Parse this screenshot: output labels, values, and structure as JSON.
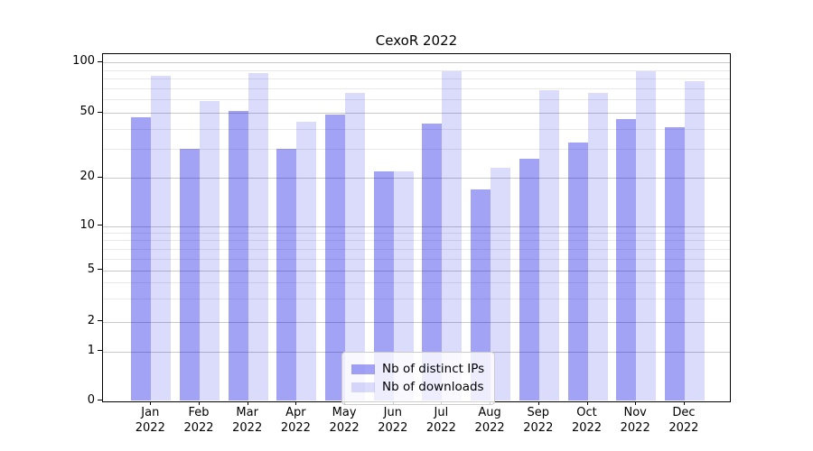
{
  "chart_data": {
    "type": "bar",
    "title": "CexoR 2022",
    "categories": [
      "Jan",
      "Feb",
      "Mar",
      "Apr",
      "May",
      "Jun",
      "Jul",
      "Aug",
      "Sep",
      "Oct",
      "Nov",
      "Dec"
    ],
    "category_year": "2022",
    "series": [
      {
        "name": "Nb of distinct IPs",
        "color": "rgba(0,0,230,0.36)",
        "values": [
          47,
          30,
          51,
          30,
          49,
          22,
          43,
          17,
          26,
          33,
          46,
          41
        ]
      },
      {
        "name": "Nb of downloads",
        "color": "rgba(0,0,230,0.14)",
        "values": [
          83,
          59,
          87,
          44,
          66,
          22,
          89,
          23,
          68,
          66,
          89,
          77
        ]
      }
    ],
    "yscale": "symlog",
    "ylabel": "",
    "xlabel": "",
    "ytick_labels": [
      "100",
      "50",
      "20",
      "10",
      "5",
      "2",
      "1",
      "0"
    ],
    "ytick_values": [
      100,
      50,
      20,
      10,
      5,
      2,
      1,
      0
    ],
    "yminor_values": [
      3,
      4,
      6,
      7,
      8,
      9,
      30,
      40,
      60,
      70,
      80,
      90
    ],
    "ylim": [
      0,
      112
    ],
    "grid": true,
    "legend_position": "lower-center",
    "colors": {
      "grid_major": "#c9c9c9",
      "grid_minor": "#e9e9e9",
      "spine": "#000000",
      "text": "#000000",
      "background": "#ffffff"
    }
  }
}
